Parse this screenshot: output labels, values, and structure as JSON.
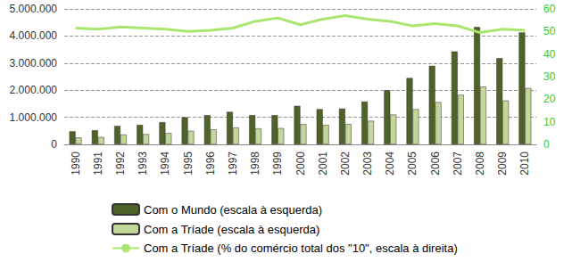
{
  "chart_data": {
    "type": "bar",
    "categories": [
      "1990",
      "1991",
      "1992",
      "1993",
      "1994",
      "1995",
      "1996",
      "1997",
      "1998",
      "1999",
      "2000",
      "2001",
      "2002",
      "2003",
      "2004",
      "2005",
      "2006",
      "2007",
      "2008",
      "2009",
      "2010"
    ],
    "series": [
      {
        "name": "Com o Mundo (escala à esquerda)",
        "type": "bar",
        "color": "#4f6228",
        "values": [
          480000,
          520000,
          680000,
          720000,
          820000,
          1000000,
          1080000,
          1200000,
          1080000,
          1080000,
          1420000,
          1300000,
          1320000,
          1580000,
          2000000,
          2450000,
          2900000,
          3430000,
          4330000,
          3180000,
          4130000
        ]
      },
      {
        "name": "Com a Tríade (escala à esquerda)",
        "type": "bar",
        "color": "#c4d79b",
        "values": [
          250000,
          270000,
          360000,
          380000,
          420000,
          500000,
          550000,
          620000,
          590000,
          600000,
          750000,
          720000,
          750000,
          870000,
          1100000,
          1300000,
          1560000,
          1830000,
          2130000,
          1620000,
          2080000
        ]
      },
      {
        "name": "Com a Tríade (% do comércio total dos \"10\", escala à direita)",
        "type": "line",
        "axis": "y2",
        "color": "#a9e66f",
        "values": [
          51.5,
          51,
          52,
          51.5,
          51,
          50,
          50.5,
          51.5,
          54.5,
          56,
          53,
          55.5,
          57,
          55.5,
          54.5,
          52.5,
          53.5,
          52.5,
          49.5,
          51,
          50.5
        ]
      }
    ],
    "ylim": [
      0,
      5000000
    ],
    "yticks": [
      0,
      {
        "value": 1000000,
        "label": "1.000.000"
      },
      {
        "value": 2000000,
        "label": "2.000.000"
      },
      {
        "value": 3000000,
        "label": "3.000.000"
      },
      {
        "value": 4000000,
        "label": "4.000.000"
      },
      {
        "value": 5000000,
        "label": "5.000.000"
      }
    ],
    "y2lim": [
      0,
      60
    ],
    "y2ticks": [
      0,
      10,
      20,
      30,
      40,
      50,
      60
    ],
    "grid": true,
    "legend": "bottom"
  }
}
